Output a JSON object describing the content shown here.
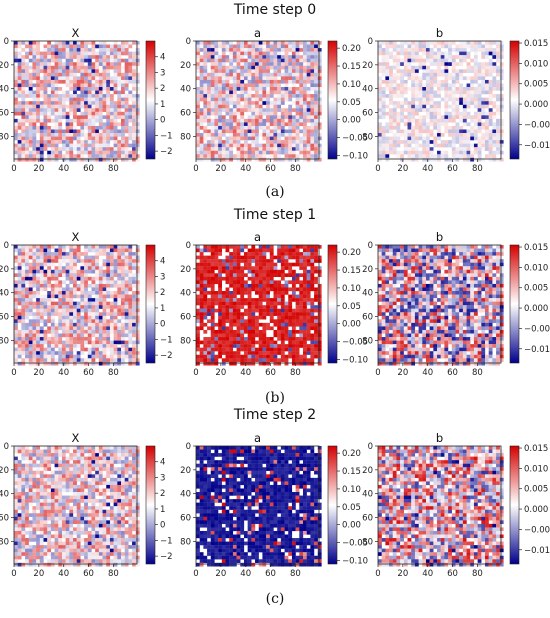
{
  "colors": {
    "positive": "#d40000",
    "negative": "#00008b",
    "zero": "#ffffff"
  },
  "chart_data": [
    {
      "type": "heatmap",
      "step_title": "Time step 0",
      "sublabel": "(a)",
      "panels": [
        {
          "title": "X",
          "xlim": [
            0,
            99
          ],
          "ylim": [
            0,
            99
          ],
          "x_ticks": [
            "0",
            "20",
            "40",
            "60",
            "80"
          ],
          "y_ticks": [
            "0",
            "20",
            "40",
            "60",
            "80"
          ],
          "colorbar": {
            "vmin": -2.5,
            "vmax": 5.0,
            "ticks": [
              4,
              3,
              2,
              1,
              0,
              -1,
              -2
            ],
            "tick_labels": [
              "4",
              "3",
              "2",
              "1",
              "0",
              "−1",
              "−2"
            ]
          },
          "pattern": "noise",
          "density": 0.55,
          "bias": 0.15
        },
        {
          "title": "a",
          "xlim": [
            0,
            99
          ],
          "ylim": [
            0,
            99
          ],
          "x_ticks": [
            "0",
            "20",
            "40",
            "60",
            "80"
          ],
          "y_ticks": [
            "0",
            "20",
            "40",
            "60",
            "80"
          ],
          "colorbar": {
            "vmin": -0.11,
            "vmax": 0.22,
            "ticks": [
              0.2,
              0.15,
              0.1,
              0.05,
              0.0,
              -0.05,
              -0.1
            ],
            "tick_labels": [
              "0.20",
              "0.15",
              "0.10",
              "0.05",
              "0.00",
              "−0.05",
              "−0.10"
            ]
          },
          "pattern": "noise",
          "density": 0.55,
          "bias": 0.15
        },
        {
          "title": "b",
          "xlim": [
            0,
            99
          ],
          "ylim": [
            0,
            99
          ],
          "x_ticks": [
            "0",
            "20",
            "40",
            "60",
            "80"
          ],
          "y_ticks": [
            "0",
            "20",
            "40",
            "60",
            "80"
          ],
          "colorbar": {
            "vmin": -0.0135,
            "vmax": 0.0155,
            "ticks": [
              0.015,
              0.01,
              0.005,
              0.0,
              -0.005,
              -0.01
            ],
            "tick_labels": [
              "0.015",
              "0.010",
              "0.005",
              "0.000",
              "−0.005",
              "−0.010"
            ]
          },
          "pattern": "noise",
          "density": 0.25,
          "bias": 0.0
        }
      ]
    },
    {
      "type": "heatmap",
      "step_title": "Time step  1",
      "sublabel": "(b)",
      "panels": [
        {
          "title": "X",
          "xlim": [
            0,
            99
          ],
          "ylim": [
            0,
            99
          ],
          "x_ticks": [
            "0",
            "20",
            "40",
            "60",
            "80"
          ],
          "y_ticks": [
            "0",
            "20",
            "40",
            "60",
            "80"
          ],
          "colorbar": {
            "vmin": -2.5,
            "vmax": 5.0,
            "ticks": [
              4,
              3,
              2,
              1,
              0,
              -1,
              -2
            ],
            "tick_labels": [
              "4",
              "3",
              "2",
              "1",
              "0",
              "−1",
              "−2"
            ]
          },
          "pattern": "noise",
          "density": 0.55,
          "bias": 0.15
        },
        {
          "title": "a",
          "xlim": [
            0,
            99
          ],
          "ylim": [
            0,
            99
          ],
          "x_ticks": [
            "0",
            "20",
            "40",
            "60",
            "80"
          ],
          "y_ticks": [
            "0",
            "20",
            "40",
            "60",
            "80"
          ],
          "colorbar": {
            "vmin": -0.11,
            "vmax": 0.22,
            "ticks": [
              0.2,
              0.15,
              0.1,
              0.05,
              0.0,
              -0.05,
              -0.1
            ],
            "tick_labels": [
              "0.20",
              "0.15",
              "0.10",
              "0.05",
              "0.00",
              "−0.05",
              "−0.10"
            ]
          },
          "pattern": "mostly_positive",
          "density": 1.0,
          "bias": 0.0
        },
        {
          "title": "b",
          "xlim": [
            0,
            99
          ],
          "ylim": [
            0,
            99
          ],
          "x_ticks": [
            "0",
            "20",
            "40",
            "60",
            "80"
          ],
          "y_ticks": [
            "0",
            "20",
            "40",
            "60",
            "80"
          ],
          "colorbar": {
            "vmin": -0.0135,
            "vmax": 0.0155,
            "ticks": [
              0.015,
              0.01,
              0.005,
              0.0,
              -0.005,
              -0.01
            ],
            "tick_labels": [
              "0.015",
              "0.010",
              "0.005",
              "0.000",
              "−0.005",
              "−0.010"
            ]
          },
          "pattern": "noise",
          "density": 0.9,
          "bias": 0.0
        }
      ]
    },
    {
      "type": "heatmap",
      "step_title": "Time step 2",
      "sublabel": "(c)",
      "panels": [
        {
          "title": "X",
          "xlim": [
            0,
            99
          ],
          "ylim": [
            0,
            99
          ],
          "x_ticks": [
            "0",
            "20",
            "40",
            "60",
            "80"
          ],
          "y_ticks": [
            "0",
            "20",
            "40",
            "60",
            "80"
          ],
          "colorbar": {
            "vmin": -2.5,
            "vmax": 5.0,
            "ticks": [
              4,
              3,
              2,
              1,
              0,
              -1,
              -2
            ],
            "tick_labels": [
              "4",
              "3",
              "2",
              "1",
              "0",
              "−1",
              "−2"
            ]
          },
          "pattern": "noise",
          "density": 0.55,
          "bias": 0.15
        },
        {
          "title": "a",
          "xlim": [
            0,
            99
          ],
          "ylim": [
            0,
            99
          ],
          "x_ticks": [
            "0",
            "20",
            "40",
            "60",
            "80"
          ],
          "y_ticks": [
            "0",
            "20",
            "40",
            "60",
            "80"
          ],
          "colorbar": {
            "vmin": -0.11,
            "vmax": 0.22,
            "ticks": [
              0.2,
              0.15,
              0.1,
              0.05,
              0.0,
              -0.05,
              -0.1
            ],
            "tick_labels": [
              "0.20",
              "0.15",
              "0.10",
              "0.05",
              "0.00",
              "−0.05",
              "−0.10"
            ]
          },
          "pattern": "mostly_negative",
          "density": 1.0,
          "bias": 0.0
        },
        {
          "title": "b",
          "xlim": [
            0,
            99
          ],
          "ylim": [
            0,
            99
          ],
          "x_ticks": [
            "0",
            "20",
            "40",
            "60",
            "80"
          ],
          "y_ticks": [
            "0",
            "20",
            "40",
            "60",
            "80"
          ],
          "colorbar": {
            "vmin": -0.0135,
            "vmax": 0.0155,
            "ticks": [
              0.015,
              0.01,
              0.005,
              0.0,
              -0.005,
              -0.01
            ],
            "tick_labels": [
              "0.015",
              "0.010",
              "0.005",
              "0.000",
              "−0.005",
              "−0.010"
            ]
          },
          "pattern": "noise",
          "density": 0.85,
          "bias": 0.1
        }
      ]
    }
  ]
}
